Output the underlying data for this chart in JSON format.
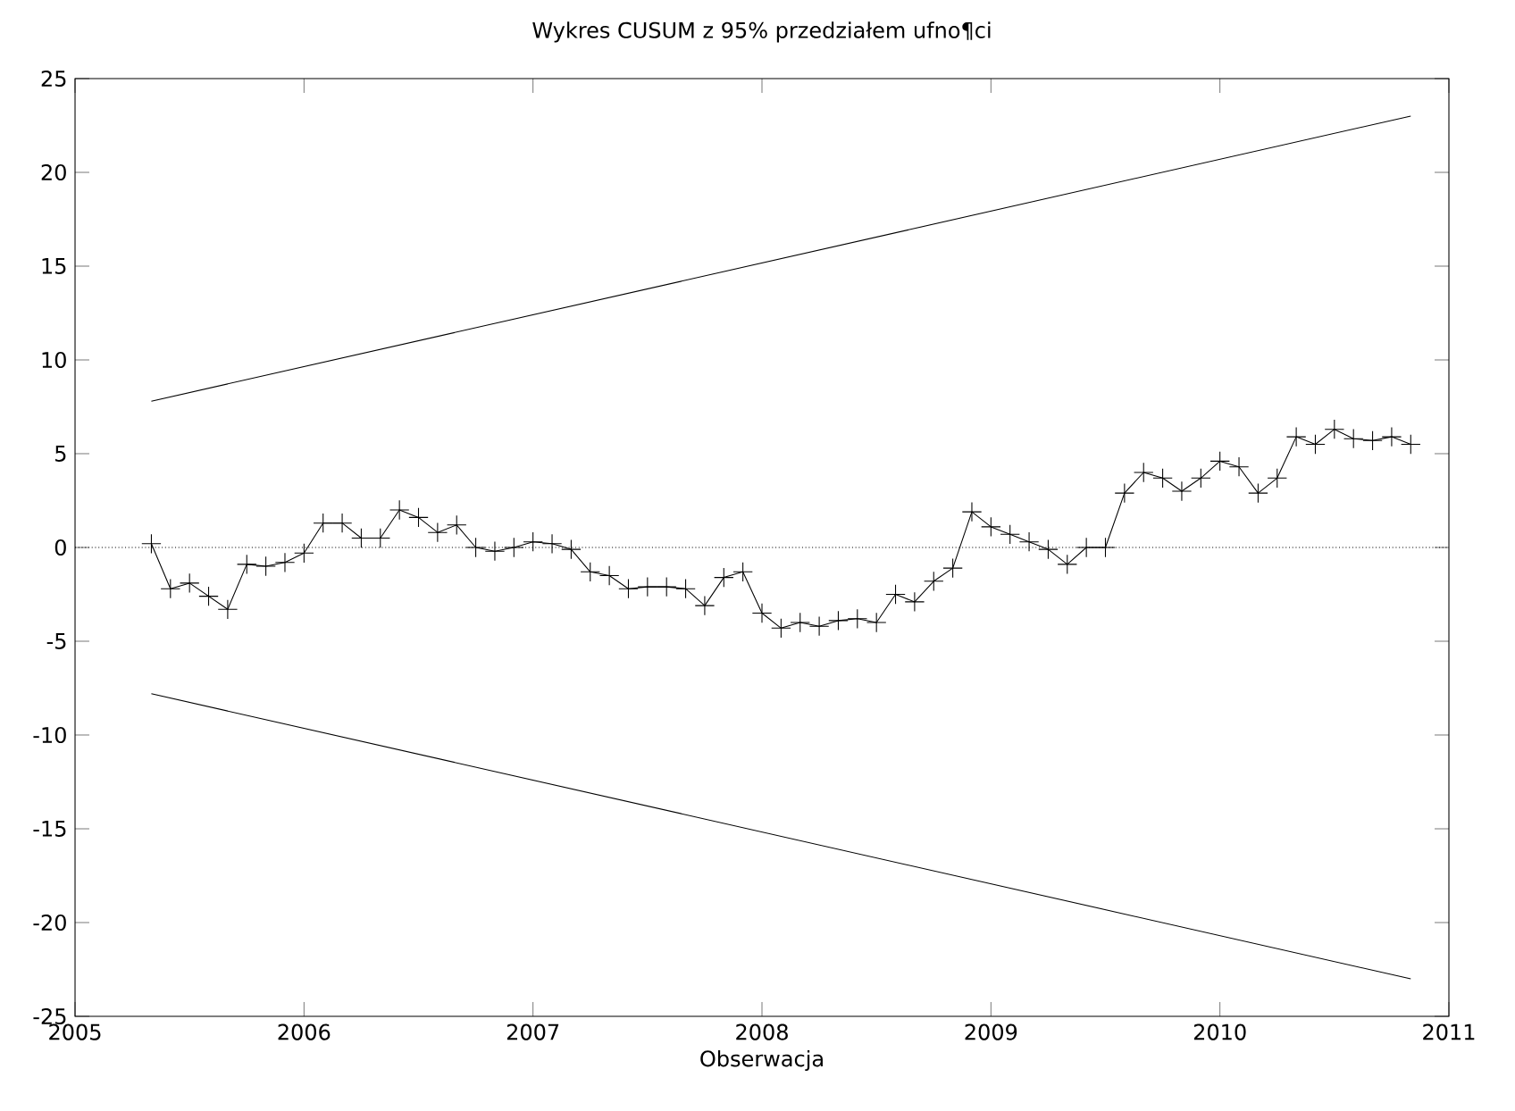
{
  "chart_data": {
    "type": "line",
    "title": "Wykres CUSUM z 95% przedziałem ufno¶ci",
    "xlabel": "Obserwacja",
    "xlim": [
      "2005",
      "2011"
    ],
    "xticks": [
      "2005",
      "2006",
      "2007",
      "2008",
      "2009",
      "2010",
      "2011"
    ],
    "ylim": [
      -25,
      25
    ],
    "yticks": [
      -25,
      -20,
      -15,
      -10,
      -5,
      0,
      5,
      10,
      15,
      20,
      25
    ],
    "grid": false,
    "ref_lines": [
      {
        "axis": "y",
        "value": 0,
        "line_style": "dotted",
        "color": "#000000"
      }
    ],
    "series": [
      {
        "color": "#000000",
        "marker": "cross",
        "line_style": "solid",
        "x": [
          "2005-05",
          "2005-06",
          "2005-07",
          "2005-08",
          "2005-09",
          "2005-10",
          "2005-11",
          "2005-12",
          "2006-01",
          "2006-02",
          "2006-03",
          "2006-04",
          "2006-05",
          "2006-06",
          "2006-07",
          "2006-08",
          "2006-09",
          "2006-10",
          "2006-11",
          "2006-12",
          "2007-01",
          "2007-02",
          "2007-03",
          "2007-04",
          "2007-05",
          "2007-06",
          "2007-07",
          "2007-08",
          "2007-09",
          "2007-10",
          "2007-11",
          "2007-12",
          "2008-01",
          "2008-02",
          "2008-03",
          "2008-04",
          "2008-05",
          "2008-06",
          "2008-07",
          "2008-08",
          "2008-09",
          "2008-10",
          "2008-11",
          "2008-12",
          "2009-01",
          "2009-02",
          "2009-03",
          "2009-04",
          "2009-05",
          "2009-06",
          "2009-07",
          "2009-08",
          "2009-09",
          "2009-10",
          "2009-11",
          "2009-12",
          "2010-01",
          "2010-02",
          "2010-03",
          "2010-04",
          "2010-05",
          "2010-06",
          "2010-07",
          "2010-08",
          "2010-09",
          "2010-10",
          "2010-11"
        ],
        "values": [
          0.2,
          -2.2,
          -1.9,
          -2.6,
          -3.3,
          -0.9,
          -1.0,
          -0.8,
          -0.3,
          1.3,
          1.3,
          0.5,
          0.5,
          2.0,
          1.6,
          0.8,
          1.2,
          0.0,
          -0.2,
          0.0,
          0.3,
          0.2,
          -0.1,
          -1.3,
          -1.5,
          -2.2,
          -2.1,
          -2.1,
          -2.2,
          -3.1,
          -1.6,
          -1.3,
          -3.5,
          -4.3,
          -4.0,
          -4.2,
          -3.9,
          -3.8,
          -4.0,
          -2.5,
          -2.9,
          -1.8,
          -1.1,
          1.9,
          1.1,
          0.7,
          0.3,
          -0.1,
          -0.9,
          0.0,
          0.0,
          2.9,
          4.0,
          3.7,
          3.0,
          3.7,
          4.6,
          4.3,
          2.9,
          3.7,
          5.9,
          5.5,
          6.3,
          5.8,
          5.7,
          5.9,
          5.5
        ]
      },
      {
        "color": "#000000",
        "marker": "none",
        "line_style": "solid",
        "x": [
          "2005-05",
          "2010-11"
        ],
        "values": [
          7.8,
          23.0
        ]
      },
      {
        "color": "#000000",
        "marker": "none",
        "line_style": "solid",
        "x": [
          "2005-05",
          "2010-11"
        ],
        "values": [
          -7.8,
          -23.0
        ]
      }
    ]
  }
}
